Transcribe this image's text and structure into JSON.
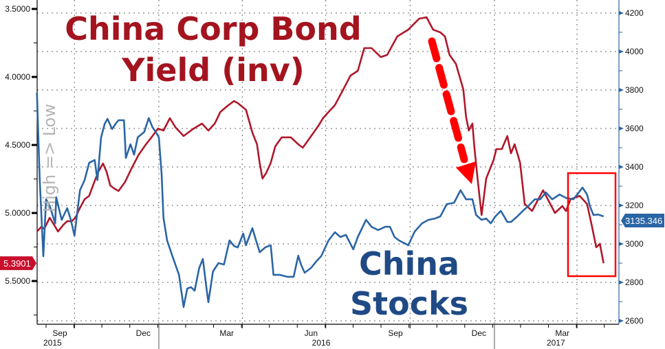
{
  "chart_data": {
    "type": "line",
    "title_left": [
      "China Corp Bond",
      "Yield (inv)"
    ],
    "title_right": [
      "China",
      "Stocks"
    ],
    "left_axis_label": "High => Low",
    "x_unit": "days since 2016-01-01",
    "xlim": [
      -133,
      502
    ],
    "x_month_labels": [
      {
        "label": "Sep",
        "day": -108
      },
      {
        "label": "Dec",
        "day": -17
      },
      {
        "label": "Mar",
        "day": 74
      },
      {
        "label": "Jun",
        "day": 166
      },
      {
        "label": "Sep",
        "day": 258
      },
      {
        "label": "Dec",
        "day": 349
      },
      {
        "label": "Mar",
        "day": 440
      }
    ],
    "x_year_labels": [
      {
        "label": "2015",
        "day": -116
      },
      {
        "label": "2016",
        "day": 177
      },
      {
        "label": "2017",
        "day": 433
      }
    ],
    "year_separators": [
      0,
      366
    ],
    "quarter_gridlines": [
      -92,
      0,
      91,
      182,
      274,
      366,
      456
    ],
    "left_axis": {
      "name": "China Corp Bond Yield (inverted)",
      "ylim": [
        3.5,
        5.85
      ],
      "inverted": true,
      "ticks": [
        "3.5000",
        "4.0000",
        "4.5000",
        "5.0000",
        "5.5000"
      ],
      "tick_values": [
        3.5,
        4.0,
        4.5,
        5.0,
        5.5
      ]
    },
    "right_axis": {
      "name": "China Stocks",
      "ylim": [
        2580,
        4200
      ],
      "ticks": [
        "4200",
        "4000",
        "3800",
        "3600",
        "3400",
        "3200",
        "3000",
        "2800",
        "2600"
      ],
      "tick_values": [
        4200,
        4000,
        3800,
        3600,
        3400,
        3200,
        3000,
        2800,
        2600
      ]
    },
    "grid": true,
    "series": [
      {
        "name": "China Corp Bond Yield",
        "axis": "left",
        "color": "#b0172a",
        "last_value_label": "5.3901",
        "x": [
          -133,
          -128,
          -125,
          -119,
          -113,
          -110,
          -104,
          -100,
          -95,
          -91,
          -87,
          -81,
          -76,
          -71,
          -66,
          -61,
          -57,
          -53,
          -48,
          -44,
          -37,
          -29,
          -22,
          -14,
          -8,
          -1,
          5,
          12,
          18,
          27,
          37,
          47,
          54,
          61,
          67,
          74,
          82,
          86,
          95,
          102,
          107,
          110,
          113,
          117,
          122,
          127,
          134,
          144,
          152,
          157,
          164,
          174,
          179,
          185,
          192,
          200,
          209,
          217,
          224,
          232,
          242,
          249,
          260,
          272,
          284,
          292,
          299,
          307,
          312,
          317,
          324,
          332,
          335,
          338,
          342,
          344,
          348,
          352,
          357,
          365,
          368,
          374,
          380,
          384,
          388,
          394,
          399,
          407,
          419,
          432,
          440,
          444,
          449,
          459,
          467,
          472,
          477,
          481,
          485
        ],
        "values": [
          5.136,
          5.101,
          5.116,
          5.035,
          5.101,
          5.136,
          5.086,
          5.06,
          5.06,
          5.035,
          4.975,
          4.899,
          4.874,
          4.783,
          4.697,
          4.636,
          4.697,
          4.798,
          4.823,
          4.838,
          4.773,
          4.662,
          4.571,
          4.495,
          4.444,
          4.379,
          4.394,
          4.303,
          4.369,
          4.434,
          4.384,
          4.343,
          4.394,
          4.343,
          4.258,
          4.217,
          4.177,
          4.192,
          4.242,
          4.409,
          4.495,
          4.636,
          4.747,
          4.707,
          4.631,
          4.51,
          4.444,
          4.444,
          4.495,
          4.52,
          4.454,
          4.359,
          4.303,
          4.258,
          4.207,
          4.106,
          3.99,
          3.955,
          3.788,
          3.788,
          3.854,
          3.838,
          3.702,
          3.652,
          3.571,
          3.561,
          3.652,
          3.672,
          3.702,
          3.838,
          3.904,
          4.091,
          4.293,
          4.394,
          4.343,
          4.51,
          4.773,
          5.015,
          4.747,
          4.611,
          4.53,
          4.53,
          4.434,
          4.561,
          4.495,
          4.631,
          4.934,
          4.985,
          4.833,
          5.0,
          4.949,
          4.985,
          4.899,
          4.874,
          4.934,
          5.086,
          5.252,
          5.227,
          5.369
        ]
      },
      {
        "name": "China Stocks",
        "axis": "right",
        "color": "#2a65a5",
        "last_value_label": "3135.346",
        "x": [
          -133,
          -130,
          -126,
          -123,
          -119,
          -113,
          -112,
          -106,
          -100,
          -96,
          -92,
          -86,
          -81,
          -76,
          -70,
          -67,
          -63,
          -59,
          -56,
          -51,
          -47,
          -44,
          -38,
          -36,
          -31,
          -27,
          -23,
          -16,
          -11,
          -7,
          -3,
          0,
          3,
          5,
          9,
          14,
          18,
          22,
          27,
          31,
          35,
          39,
          44,
          48,
          52,
          54,
          59,
          65,
          71,
          77,
          82,
          86,
          92,
          95,
          102,
          106,
          110,
          116,
          122,
          125,
          132,
          140,
          147,
          152,
          155,
          159,
          166,
          172,
          177,
          185,
          192,
          198,
          204,
          212,
          217,
          226,
          232,
          239,
          247,
          252,
          257,
          262,
          272,
          279,
          287,
          294,
          301,
          307,
          314,
          322,
          329,
          335,
          342,
          346,
          352,
          357,
          362,
          367,
          373,
          380,
          384,
          391,
          397,
          403,
          410,
          416,
          422,
          429,
          437,
          444,
          452,
          457,
          462,
          467,
          470,
          474,
          479,
          485
        ],
        "values": [
          3786,
          3339,
          2936,
          3232,
          3197,
          3107,
          3243,
          3125,
          3186,
          3125,
          3043,
          3279,
          3332,
          3422,
          3436,
          3332,
          3554,
          3625,
          3650,
          3597,
          3625,
          3643,
          3643,
          3447,
          3518,
          3464,
          3554,
          3582,
          3654,
          3607,
          3579,
          3554,
          3364,
          3136,
          3018,
          2947,
          2893,
          2839,
          2672,
          2768,
          2775,
          2757,
          2875,
          2922,
          2768,
          2697,
          2857,
          2900,
          2893,
          3018,
          2989,
          2982,
          3054,
          2993,
          3082,
          3018,
          2957,
          2982,
          2993,
          2839,
          2839,
          2829,
          2829,
          2939,
          2893,
          2850,
          2875,
          2911,
          2936,
          3018,
          3061,
          3036,
          3047,
          2972,
          3036,
          3125,
          3089,
          3072,
          3089,
          3089,
          3036,
          3018,
          2993,
          3064,
          3107,
          3125,
          3132,
          3143,
          3207,
          3214,
          3279,
          3232,
          3232,
          3150,
          3125,
          3132,
          3107,
          3143,
          3172,
          3114,
          3114,
          3143,
          3172,
          3197,
          3232,
          3232,
          3268,
          3232,
          3257,
          3239,
          3232,
          3261,
          3293,
          3257,
          3197,
          3150,
          3153,
          3143
        ]
      }
    ],
    "annotations": [
      {
        "type": "dashed-arrow",
        "color": "#ff0000",
        "meaning": "yield spike down"
      },
      {
        "type": "rectangle",
        "color": "#ff0000",
        "meaning": "recent divergence"
      }
    ]
  }
}
